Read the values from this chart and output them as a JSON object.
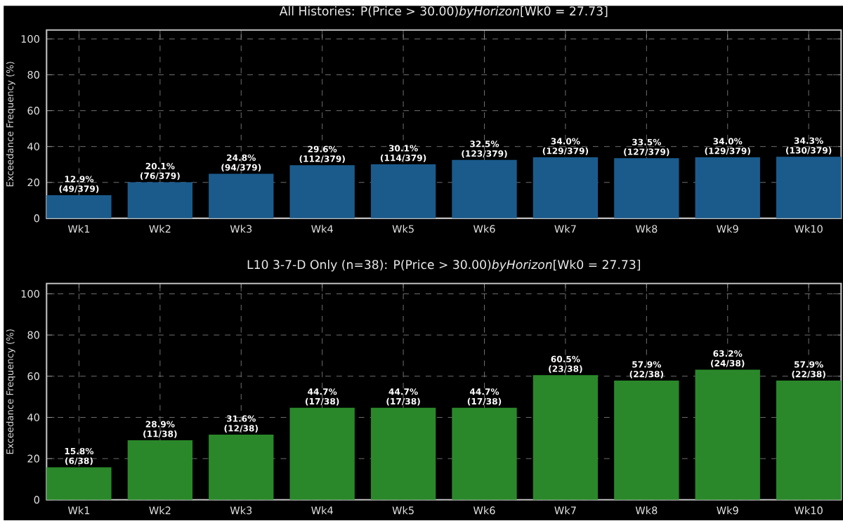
{
  "chart_data": [
    {
      "type": "bar",
      "title": "All Histories: P(Price > 30.00)*byHorizon*[Wk0 = 27.73]",
      "ylabel": "Exceedance Frequency (%)",
      "categories": [
        "Wk1",
        "Wk2",
        "Wk3",
        "Wk4",
        "Wk5",
        "Wk6",
        "Wk7",
        "Wk8",
        "Wk9",
        "Wk10"
      ],
      "values": [
        12.9,
        20.1,
        24.8,
        29.6,
        30.1,
        32.5,
        34.0,
        33.5,
        34.0,
        34.3
      ],
      "color": "#1b5b8c",
      "ylim": [
        0,
        105
      ],
      "yticks": [
        0,
        20,
        40,
        60,
        80,
        100
      ],
      "grid": true,
      "value_labels": [
        "12.9% (49/379)",
        "20.1% (76/379)",
        "24.8% (94/379)",
        "29.6% (112/379)",
        "30.1% (114/379)",
        "32.5% (123/379)",
        "34.0% (129/379)",
        "33.5% (127/379)",
        "34.0% (129/379)",
        "34.3% (130/379)"
      ]
    },
    {
      "type": "bar",
      "title": "L10 3-7-D Only (n=38): P(Price > 30.00)*byHorizon*[Wk0 = 27.73]",
      "ylabel": "Exceedance Frequency (%)",
      "categories": [
        "Wk1",
        "Wk2",
        "Wk3",
        "Wk4",
        "Wk5",
        "Wk6",
        "Wk7",
        "Wk8",
        "Wk9",
        "Wk10"
      ],
      "values": [
        15.8,
        28.9,
        31.6,
        44.7,
        44.7,
        44.7,
        60.5,
        57.9,
        63.2,
        57.9
      ],
      "color": "#2a882a",
      "ylim": [
        0,
        105
      ],
      "yticks": [
        0,
        20,
        40,
        60,
        80,
        100
      ],
      "grid": true,
      "value_labels": [
        "15.8% (6/38)",
        "28.9% (11/38)",
        "31.6% (12/38)",
        "44.7% (17/38)",
        "44.7% (17/38)",
        "44.7% (17/38)",
        "60.5% (23/38)",
        "57.9% (22/38)",
        "63.2% (24/38)",
        "57.9% (22/38)"
      ]
    }
  ]
}
